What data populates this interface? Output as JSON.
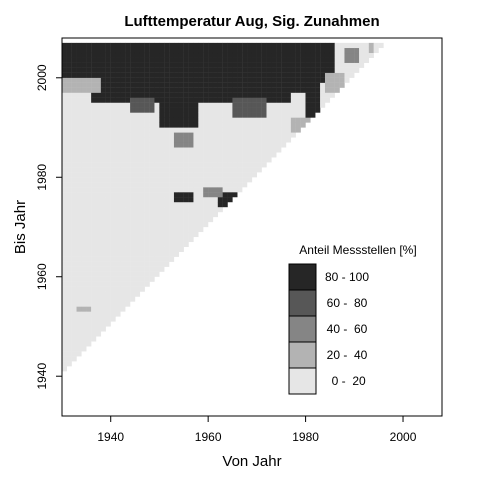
{
  "chart_data": {
    "type": "heatmap",
    "title": "Lufttemperatur Aug, Sig. Zunahmen",
    "xlabel": "Von Jahr",
    "ylabel": "Bis Jahr",
    "xlim": [
      1930,
      2008
    ],
    "ylim": [
      1932,
      2008
    ],
    "xticks": [
      1940,
      1960,
      1980,
      2000
    ],
    "yticks": [
      1940,
      1960,
      1980,
      2000
    ],
    "grid": false,
    "legend": {
      "title": "Anteil Messstellen [%]",
      "position": "lower-right",
      "classes": [
        {
          "label": "80 - 100",
          "color": "#262626"
        },
        {
          "label": "60 -  80",
          "color": "#575757"
        },
        {
          "label": "40 -  60",
          "color": "#858585"
        },
        {
          "label": "20 -  40",
          "color": "#b3b3b3"
        },
        {
          "label": " 0 -  20",
          "color": "#e6e6e6"
        }
      ]
    },
    "cells": {
      "year_start": 1930,
      "domain": "von < bis (lower-right triangle), von 1930-1996, bis 1941-2006",
      "default_class": " 0 -  20",
      "regions": [
        {
          "class": "80 - 100",
          "von_range": [
            1930,
            1950
          ],
          "bis_range": [
            2000,
            2006
          ]
        },
        {
          "class": "80 - 100",
          "von_range": [
            1936,
            1976
          ],
          "bis_range": [
            1995,
            2006
          ]
        },
        {
          "class": "80 - 100",
          "von_range": [
            1950,
            1957
          ],
          "bis_range": [
            1990,
            2006
          ]
        },
        {
          "class": "80 - 100",
          "von_range": [
            1976,
            1980
          ],
          "bis_range": [
            1997,
            2006
          ]
        },
        {
          "class": "80 - 100",
          "von_range": [
            1980,
            1982
          ],
          "bis_range": [
            1992,
            2006
          ]
        },
        {
          "class": "80 - 100",
          "von_range": [
            1982,
            1985
          ],
          "bis_range": [
            1999,
            2006
          ]
        },
        {
          "class": "80 - 100",
          "von_range": [
            1962,
            1966
          ],
          "bis_range": [
            1974,
            1976
          ]
        },
        {
          "class": "80 - 100",
          "von_range": [
            1953,
            1956
          ],
          "bis_range": [
            1975,
            1976
          ]
        },
        {
          "class": "40 -  60",
          "von_range": [
            1953,
            1956
          ],
          "bis_range": [
            1986,
            1988
          ]
        },
        {
          "class": "40 -  60",
          "von_range": [
            1959,
            1962
          ],
          "bis_range": [
            1976,
            1977
          ]
        },
        {
          "class": "20 -  40",
          "von_range": [
            1933,
            1935
          ],
          "bis_range": [
            1953,
            1953
          ]
        },
        {
          "class": "20 -  40",
          "von_range": [
            1930,
            1937
          ],
          "bis_range": [
            1997,
            1999
          ]
        },
        {
          "class": "60 -  80",
          "von_range": [
            1944,
            1948
          ],
          "bis_range": [
            1993,
            1995
          ]
        },
        {
          "class": "60 -  80",
          "von_range": [
            1965,
            1971
          ],
          "bis_range": [
            1992,
            1995
          ]
        },
        {
          "class": "20 -  40",
          "von_range": [
            1977,
            1982
          ],
          "bis_range": [
            1989,
            1991
          ]
        },
        {
          "class": "20 -  40",
          "von_range": [
            1984,
            1987
          ],
          "bis_range": [
            1997,
            2000
          ]
        },
        {
          "class": "40 -  60",
          "von_range": [
            1988,
            1990
          ],
          "bis_range": [
            2003,
            2005
          ]
        },
        {
          "class": "20 -  40",
          "von_range": [
            1993,
            1993
          ],
          "bis_range": [
            2005,
            2006
          ]
        }
      ]
    }
  }
}
